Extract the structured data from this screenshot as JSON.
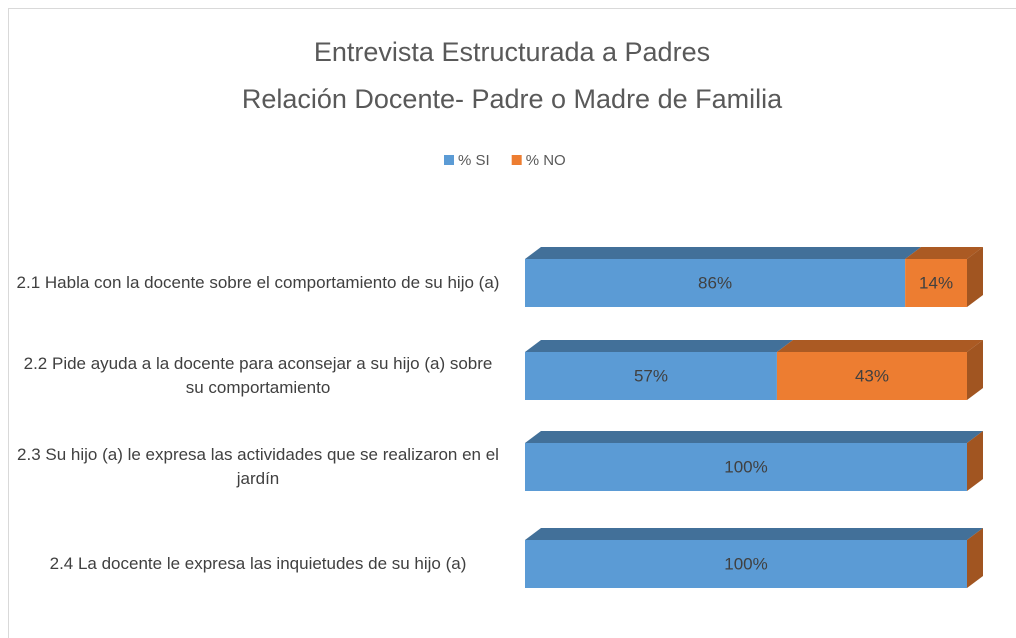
{
  "chart_data": {
    "type": "stacked-bar-horizontal",
    "title": [
      "Entrevista Estructurada a Padres",
      "Relación Docente- Padre o Madre de Familia"
    ],
    "categories": [
      "2.1 Habla con la docente sobre el comportamiento de su hijo (a)",
      "2.2 Pide ayuda a la docente  para aconsejar a su hijo (a) sobre su comportamiento",
      "2.3 Su hijo (a)  le expresa las actividades que se realizaron en el jardín",
      "2.4 La docente le expresa las inquietudes de su hijo  (a)"
    ],
    "series": [
      {
        "name": "% SI",
        "color": "#5b9bd5",
        "values": [
          86,
          57,
          100,
          100
        ],
        "value_labels": [
          "86%",
          "57%",
          "100%",
          "100%"
        ]
      },
      {
        "name": "% NO",
        "color": "#ed7d31",
        "values": [
          14,
          43,
          0,
          0
        ],
        "value_labels": [
          "14%",
          "43%",
          null,
          null
        ]
      }
    ],
    "xlim": [
      0,
      100
    ],
    "legend": "top"
  }
}
